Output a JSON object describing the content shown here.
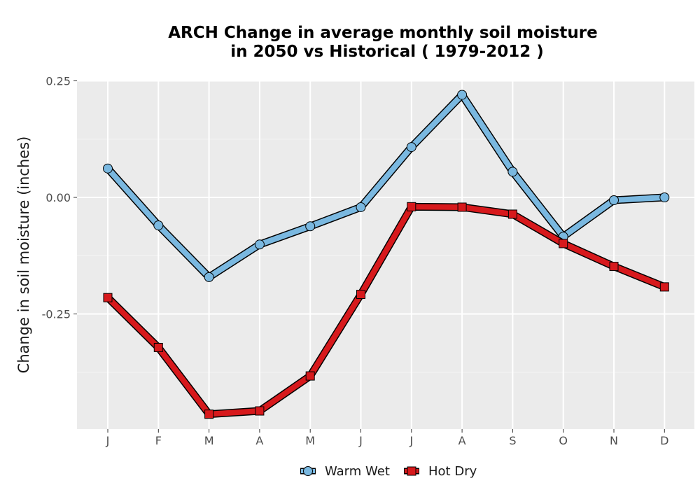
{
  "chart_data": {
    "type": "line",
    "title_line1": "ARCH  Change in average monthly soil moisture",
    "title_line2": "in 2050 vs Historical ( 1979-2012 )",
    "xlabel": "",
    "ylabel": "Change in soil moisture (inches)",
    "categories": [
      "J",
      "F",
      "M",
      "A",
      "M",
      "J",
      "J",
      "A",
      "S",
      "O",
      "N",
      "D"
    ],
    "ylim": [
      -0.5,
      0.25
    ],
    "yticks": [
      0.25,
      0.0,
      -0.25
    ],
    "ytick_labels": [
      "0.25",
      "0.00",
      "-0.25"
    ],
    "grid": true,
    "legend_position": "bottom",
    "series": [
      {
        "name": "Warm Wet",
        "color": "#7ab8e0",
        "marker": "circle",
        "values": [
          0.062,
          -0.06,
          -0.171,
          -0.101,
          -0.062,
          -0.021,
          0.108,
          0.22,
          0.055,
          -0.084,
          -0.006,
          0.0
        ]
      },
      {
        "name": "Hot Dry",
        "color": "#d7191c",
        "marker": "square",
        "values": [
          -0.215,
          -0.322,
          -0.465,
          -0.458,
          -0.383,
          -0.208,
          -0.02,
          -0.021,
          -0.036,
          -0.099,
          -0.148,
          -0.192
        ]
      }
    ]
  }
}
